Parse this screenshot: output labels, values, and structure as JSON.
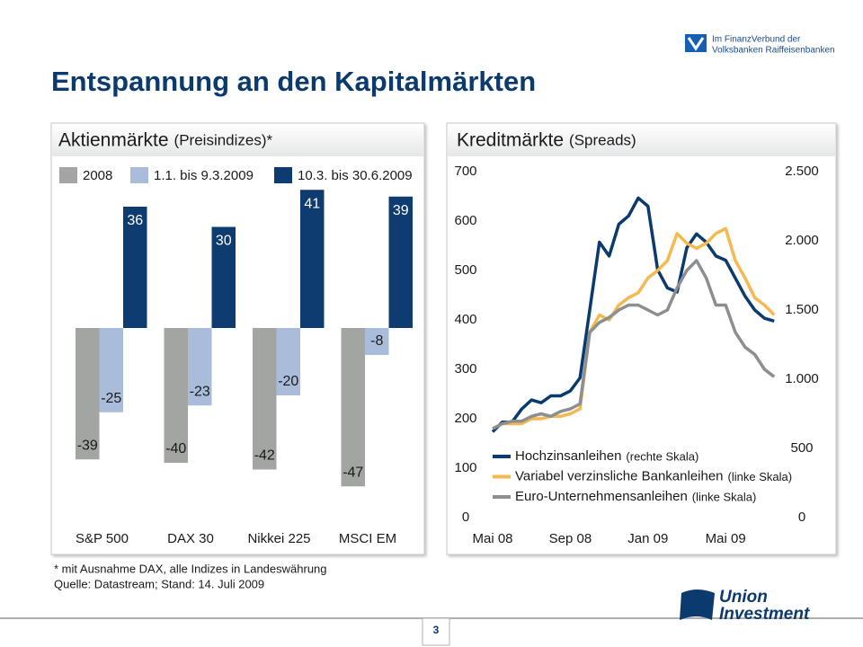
{
  "header": {
    "title": "Entspannung an den Kapitalmärkten"
  },
  "logos": {
    "finanzverbund": [
      "Im FinanzVerbund der",
      "Volksbanken Raiffeisenbanken"
    ],
    "union": [
      "Union",
      "Investment"
    ]
  },
  "footnotes": [
    "* mit Ausnahme DAX, alle Indizes in Landeswährung",
    "Quelle: Datastream; Stand: 14. Juli 2009"
  ],
  "page_number": "3",
  "chart_data": [
    {
      "type": "bar",
      "title": "Aktienmärkte",
      "subtitle": "(Preisindizes)*",
      "categories": [
        "S&P 500",
        "DAX 30",
        "Nikkei 225",
        "MSCI EM"
      ],
      "series": [
        {
          "name": "2008",
          "color": "#a2a5a1",
          "values": [
            -39,
            -40,
            -42,
            -47
          ]
        },
        {
          "name": "1.1. bis 9.3.2009",
          "color": "#a9bddb",
          "values": [
            -25,
            -23,
            -20,
            -8
          ]
        },
        {
          "name": "10.3. bis 30.6.2009",
          "color": "#0e3c70",
          "values": [
            36,
            30,
            41,
            39
          ]
        }
      ]
    },
    {
      "type": "line",
      "title": "Kreditmärkte",
      "subtitle": "(Spreads)",
      "categories": [
        "Mai 08",
        null,
        null,
        null,
        null,
        null,
        null,
        null,
        "Sep 08",
        null,
        null,
        null,
        null,
        null,
        null,
        null,
        "Jan 09",
        null,
        null,
        null,
        null,
        null,
        null,
        null,
        "Mai 09",
        null,
        null,
        null,
        null,
        null
      ],
      "ylim": [
        0,
        700
      ],
      "yticks": [
        0,
        100,
        200,
        300,
        400,
        500,
        600,
        700
      ],
      "y2lim": [
        0,
        2500
      ],
      "y2ticks": [
        0,
        500,
        {
          "value": 1000,
          "label": "1.000"
        },
        {
          "value": 1500,
          "label": "1.500"
        },
        {
          "value": 2000,
          "label": "2.000"
        },
        {
          "value": 2500,
          "label": "2.500"
        }
      ],
      "series": [
        {
          "name": "Hochzinsanleihen",
          "scale_label": "(rechte Skala)",
          "axis": "y2",
          "color": "#0b3a6e",
          "values": [
            620,
            690,
            690,
            785,
            850,
            830,
            880,
            880,
            915,
            1010,
            1500,
            1990,
            1890,
            2120,
            2180,
            2310,
            2250,
            1790,
            1660,
            1630,
            1950,
            2050,
            1990,
            1890,
            1860,
            1730,
            1600,
            1500,
            1440,
            1420
          ]
        },
        {
          "name": "Variabel verzinsliche Bankanleihen",
          "scale_label": "(linke Skala)",
          "color": "#f5b94f",
          "values": [
            180,
            190,
            190,
            190,
            200,
            200,
            205,
            205,
            210,
            220,
            375,
            410,
            400,
            430,
            445,
            455,
            485,
            500,
            520,
            575,
            555,
            545,
            555,
            575,
            585,
            520,
            485,
            445,
            430,
            410
          ]
        },
        {
          "name": "Euro-Unternehmensanleihen",
          "scale_label": "(linke Skala)",
          "color": "#8c8f91",
          "values": [
            180,
            190,
            195,
            195,
            205,
            210,
            205,
            215,
            220,
            230,
            375,
            395,
            405,
            420,
            430,
            430,
            420,
            410,
            420,
            465,
            500,
            520,
            485,
            430,
            430,
            375,
            345,
            330,
            300,
            285
          ]
        }
      ]
    }
  ]
}
